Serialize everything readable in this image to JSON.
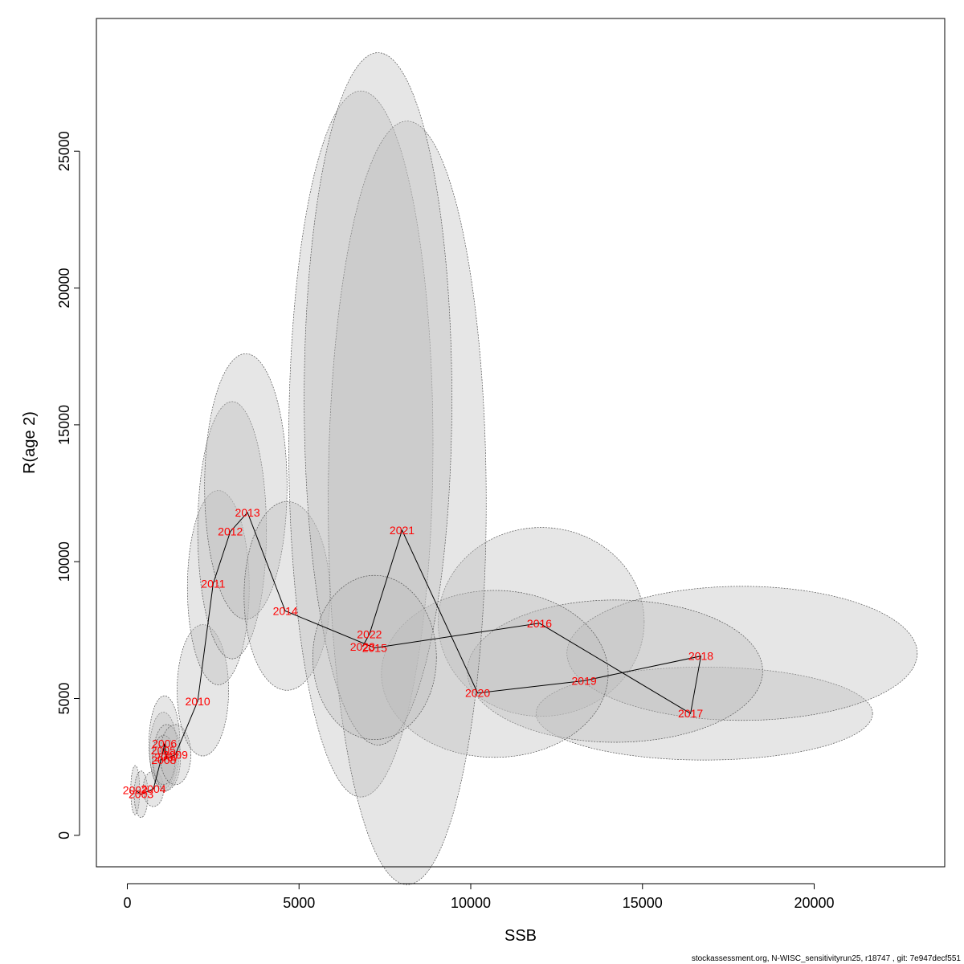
{
  "chart_data": {
    "type": "scatter",
    "xlabel": "SSB",
    "ylabel": "R(age 2)",
    "xlim": [
      -900,
      23800
    ],
    "ylim": [
      -1150,
      29850
    ],
    "x_ticks": [
      0,
      5000,
      10000,
      15000,
      20000
    ],
    "y_ticks": [
      0,
      5000,
      10000,
      15000,
      20000,
      25000
    ],
    "grid": false,
    "colors": {
      "label": "#ff0000",
      "ellipse_fill": "#bebebe",
      "ellipse_stroke": "#555555",
      "path": "#000000"
    },
    "points": [
      {
        "year": "2002",
        "ssb": 230,
        "r": 1650
      },
      {
        "year": "2003",
        "ssb": 400,
        "r": 1500
      },
      {
        "year": "2004",
        "ssb": 760,
        "r": 1700
      },
      {
        "year": "2005",
        "ssb": 1050,
        "r": 3100
      },
      {
        "year": "2006",
        "ssb": 1080,
        "r": 3350
      },
      {
        "year": "2007",
        "ssb": 1150,
        "r": 2850
      },
      {
        "year": "2008",
        "ssb": 1060,
        "r": 2750
      },
      {
        "year": "2009",
        "ssb": 1400,
        "r": 2950
      },
      {
        "year": "2010",
        "ssb": 2050,
        "r": 4900
      },
      {
        "year": "2011",
        "ssb": 2500,
        "r": 9200
      },
      {
        "year": "2012",
        "ssb": 3000,
        "r": 11100
      },
      {
        "year": "2013",
        "ssb": 3500,
        "r": 11800
      },
      {
        "year": "2014",
        "ssb": 4600,
        "r": 8200
      },
      {
        "year": "2015",
        "ssb": 7200,
        "r": 6850
      },
      {
        "year": "2016",
        "ssb": 12000,
        "r": 7750
      },
      {
        "year": "2017",
        "ssb": 16400,
        "r": 4450
      },
      {
        "year": "2018",
        "ssb": 16700,
        "r": 6550
      },
      {
        "year": "2019",
        "ssb": 13300,
        "r": 5650
      },
      {
        "year": "2020",
        "ssb": 10200,
        "r": 5200
      },
      {
        "year": "2021",
        "ssb": 8000,
        "r": 11150
      },
      {
        "year": "2022",
        "ssb": 7050,
        "r": 7350
      },
      {
        "year": "2023",
        "ssb": 6850,
        "r": 6900
      }
    ],
    "ellipses": [
      {
        "year": "2002",
        "cx": 230,
        "cy": 1650,
        "rx": 130,
        "ry": 900
      },
      {
        "year": "2003",
        "cx": 400,
        "cy": 1500,
        "rx": 200,
        "ry": 850
      },
      {
        "year": "2004",
        "cx": 760,
        "cy": 1700,
        "rx": 300,
        "ry": 650
      },
      {
        "year": "2005",
        "cx": 1050,
        "cy": 3100,
        "rx": 400,
        "ry": 1400
      },
      {
        "year": "2006",
        "cx": 1080,
        "cy": 3350,
        "rx": 450,
        "ry": 1750
      },
      {
        "year": "2007",
        "cx": 1150,
        "cy": 2850,
        "rx": 400,
        "ry": 1200
      },
      {
        "year": "2008",
        "cx": 1060,
        "cy": 2750,
        "rx": 330,
        "ry": 900
      },
      {
        "year": "2009",
        "cx": 1400,
        "cy": 2950,
        "rx": 450,
        "ry": 1100
      },
      {
        "year": "2010",
        "cx": 2200,
        "cy": 5300,
        "rx": 750,
        "ry": 2400
      },
      {
        "year": "2011",
        "cx": 2650,
        "cy": 9050,
        "rx": 900,
        "ry": 3550
      },
      {
        "year": "2012",
        "cx": 3050,
        "cy": 11150,
        "rx": 1000,
        "ry": 4700
      },
      {
        "year": "2013",
        "cx": 3450,
        "cy": 12750,
        "rx": 1200,
        "ry": 4850
      },
      {
        "year": "2014",
        "cx": 4650,
        "cy": 8750,
        "rx": 1250,
        "ry": 3450
      },
      {
        "year": "2015",
        "cx": 6800,
        "cy": 14300,
        "rx": 2100,
        "ry": 12900
      },
      {
        "year": "2016",
        "cx": 12050,
        "cy": 7800,
        "rx": 3000,
        "ry": 3450
      },
      {
        "year": "2017",
        "cx": 16800,
        "cy": 4450,
        "rx": 4900,
        "ry": 1700
      },
      {
        "year": "2018",
        "cx": 17900,
        "cy": 6650,
        "rx": 5100,
        "ry": 2450
      },
      {
        "year": "2019",
        "cx": 14200,
        "cy": 6000,
        "rx": 4300,
        "ry": 2600
      },
      {
        "year": "2020",
        "cx": 10700,
        "cy": 5900,
        "rx": 3300,
        "ry": 3050
      },
      {
        "year": "2021",
        "cx": 8150,
        "cy": 12150,
        "rx": 2300,
        "ry": 13950
      },
      {
        "year": "2022",
        "cx": 7300,
        "cy": 15950,
        "rx": 2150,
        "ry": 12650
      },
      {
        "year": "2023",
        "cx": 7200,
        "cy": 6500,
        "rx": 1800,
        "ry": 3000
      }
    ]
  },
  "footer": "stockassessment.org, N-WISC_sensitivityrun25, r18747 , git: 7e947decf551"
}
